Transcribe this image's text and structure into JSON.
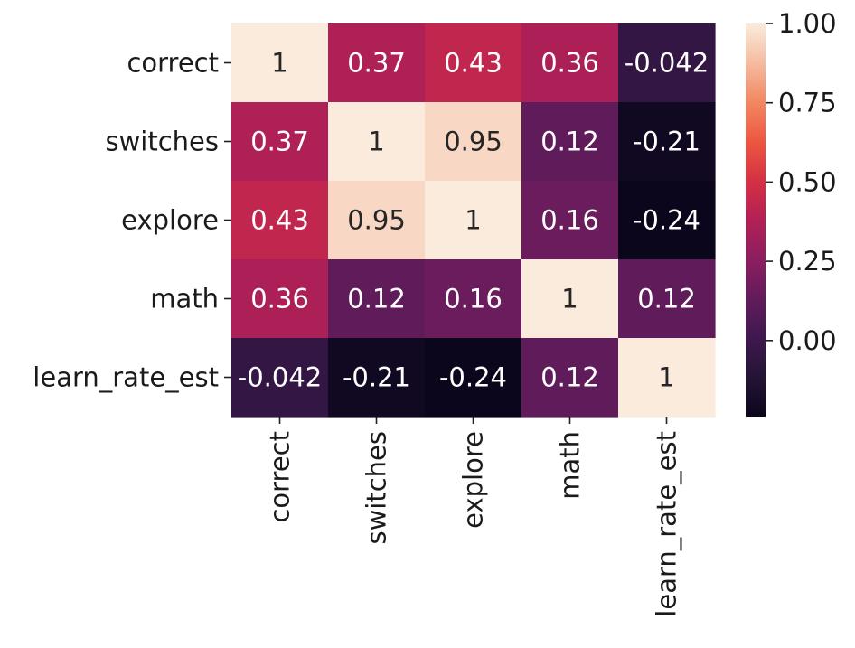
{
  "chart_data": {
    "type": "heatmap",
    "title": "",
    "xlabel": "",
    "ylabel": "",
    "row_labels": [
      "correct",
      "switches",
      "explore",
      "math",
      "learn_rate_est"
    ],
    "col_labels": [
      "correct",
      "switches",
      "explore",
      "math",
      "learn_rate_est"
    ],
    "values": [
      [
        1.0,
        0.37,
        0.43,
        0.36,
        -0.042
      ],
      [
        0.37,
        1.0,
        0.95,
        0.12,
        -0.21
      ],
      [
        0.43,
        0.95,
        1.0,
        0.16,
        -0.24
      ],
      [
        0.36,
        0.12,
        0.16,
        1.0,
        0.12
      ],
      [
        -0.042,
        -0.21,
        -0.24,
        0.12,
        1.0
      ]
    ],
    "annotations": [
      [
        "1",
        "0.37",
        "0.43",
        "0.36",
        "-0.042"
      ],
      [
        "0.37",
        "1",
        "0.95",
        "0.12",
        "-0.21"
      ],
      [
        "0.43",
        "0.95",
        "1",
        "0.16",
        "-0.24"
      ],
      [
        "0.36",
        "0.12",
        "0.16",
        "1",
        "0.12"
      ],
      [
        "-0.042",
        "-0.21",
        "-0.24",
        "0.12",
        "1"
      ]
    ],
    "colormap": "rocket",
    "colorbar": {
      "vmin": -0.24,
      "vmax": 1.0,
      "ticks": [
        0.0,
        0.25,
        0.5,
        0.75,
        1.0
      ],
      "tick_labels": [
        "0.00",
        "0.25",
        "0.50",
        "0.75",
        "1.00"
      ]
    }
  }
}
